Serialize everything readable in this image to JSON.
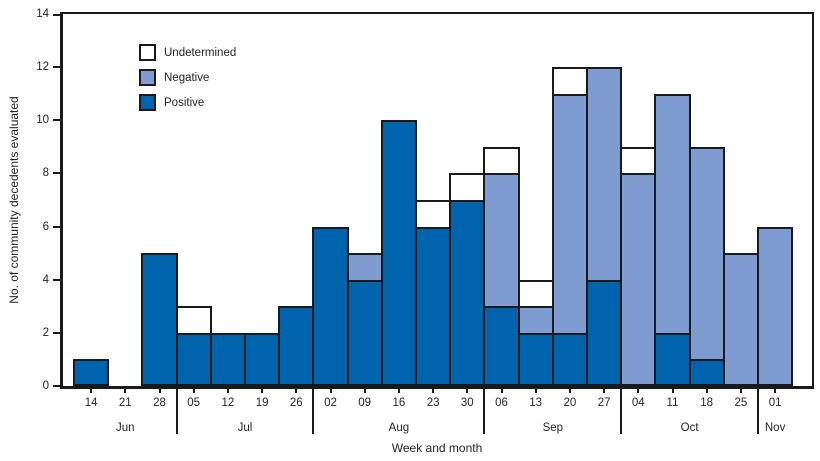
{
  "chart_data": {
    "type": "bar",
    "stacked": true,
    "ylabel": "No. of community decedents evaluated",
    "xlabel": "Week and month",
    "ylim": [
      0,
      14
    ],
    "yticks": [
      0,
      2,
      4,
      6,
      8,
      10,
      12,
      14
    ],
    "grid": false,
    "legend_position": "top-left-inside",
    "legend": [
      {
        "label": "Undetermined",
        "color": "#ffffff"
      },
      {
        "label": "Negative",
        "color": "#7f9cd2"
      },
      {
        "label": "Positive",
        "color": "#0063ad"
      }
    ],
    "months": [
      {
        "label": "Jun",
        "weeks": [
          "14",
          "21",
          "28"
        ]
      },
      {
        "label": "Jul",
        "weeks": [
          "05",
          "12",
          "19",
          "26"
        ]
      },
      {
        "label": "Aug",
        "weeks": [
          "02",
          "09",
          "16",
          "23",
          "30"
        ]
      },
      {
        "label": "Sep",
        "weeks": [
          "06",
          "13",
          "20",
          "27"
        ]
      },
      {
        "label": "Oct",
        "weeks": [
          "04",
          "11",
          "18",
          "25"
        ]
      },
      {
        "label": "Nov",
        "weeks": [
          "01"
        ]
      }
    ],
    "categories": [
      "Jun 14",
      "Jun 21",
      "Jun 28",
      "Jul 05",
      "Jul 12",
      "Jul 19",
      "Jul 26",
      "Aug 02",
      "Aug 09",
      "Aug 16",
      "Aug 23",
      "Aug 30",
      "Sep 06",
      "Sep 13",
      "Sep 20",
      "Sep 27",
      "Oct 04",
      "Oct 11",
      "Oct 18",
      "Oct 25",
      "Nov 01"
    ],
    "series": [
      {
        "name": "Positive",
        "color": "#0063ad",
        "values": [
          1,
          0,
          5,
          2,
          2,
          2,
          3,
          6,
          4,
          10,
          6,
          7,
          3,
          2,
          2,
          4,
          0,
          2,
          1,
          0,
          0
        ]
      },
      {
        "name": "Negative",
        "color": "#7f9cd2",
        "values": [
          0,
          0,
          0,
          0,
          0,
          0,
          0,
          0,
          1,
          0,
          0,
          0,
          5,
          1,
          9,
          8,
          8,
          9,
          8,
          5,
          6
        ]
      },
      {
        "name": "Undetermined",
        "color": "#ffffff",
        "values": [
          0,
          0,
          0,
          1,
          0,
          0,
          0,
          0,
          0,
          0,
          1,
          1,
          1,
          1,
          1,
          0,
          1,
          0,
          0,
          0,
          0
        ]
      }
    ]
  }
}
